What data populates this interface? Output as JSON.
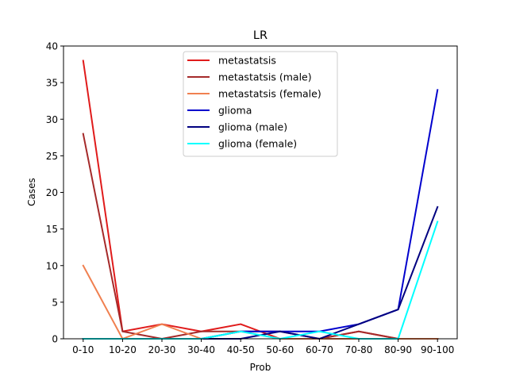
{
  "chart_data": {
    "type": "line",
    "title": "LR",
    "xlabel": "Prob",
    "ylabel": "Cases",
    "categories": [
      "0-10",
      "10-20",
      "20-30",
      "30-40",
      "40-50",
      "50-60",
      "60-70",
      "70-80",
      "80-90",
      "90-100"
    ],
    "ylim": [
      0,
      40
    ],
    "yticks": [
      0,
      5,
      10,
      15,
      20,
      25,
      30,
      35,
      40
    ],
    "grid": false,
    "legend_position": "upper-center",
    "series": [
      {
        "name": "metastatsis",
        "color": "#e01b1b",
        "values": [
          38,
          1,
          2,
          1,
          2,
          0,
          0,
          1,
          0,
          0
        ]
      },
      {
        "name": "metastatsis (male)",
        "color": "#a52a2a",
        "values": [
          28,
          1,
          0,
          1,
          1,
          1,
          0,
          1,
          0,
          0
        ]
      },
      {
        "name": "metastatsis (female)",
        "color": "#f08050",
        "values": [
          10,
          0,
          2,
          0,
          1,
          0,
          0,
          0,
          0,
          0
        ]
      },
      {
        "name": "glioma",
        "color": "#0000cd",
        "values": [
          0,
          0,
          0,
          0,
          1,
          1,
          1,
          2,
          4,
          34
        ]
      },
      {
        "name": "glioma (male)",
        "color": "#000080",
        "values": [
          0,
          0,
          0,
          0,
          0,
          1,
          0,
          2,
          4,
          18
        ]
      },
      {
        "name": "glioma (female)",
        "color": "#00ffff",
        "values": [
          0,
          0,
          0,
          0,
          1,
          0,
          1,
          0,
          0,
          16
        ]
      }
    ]
  }
}
